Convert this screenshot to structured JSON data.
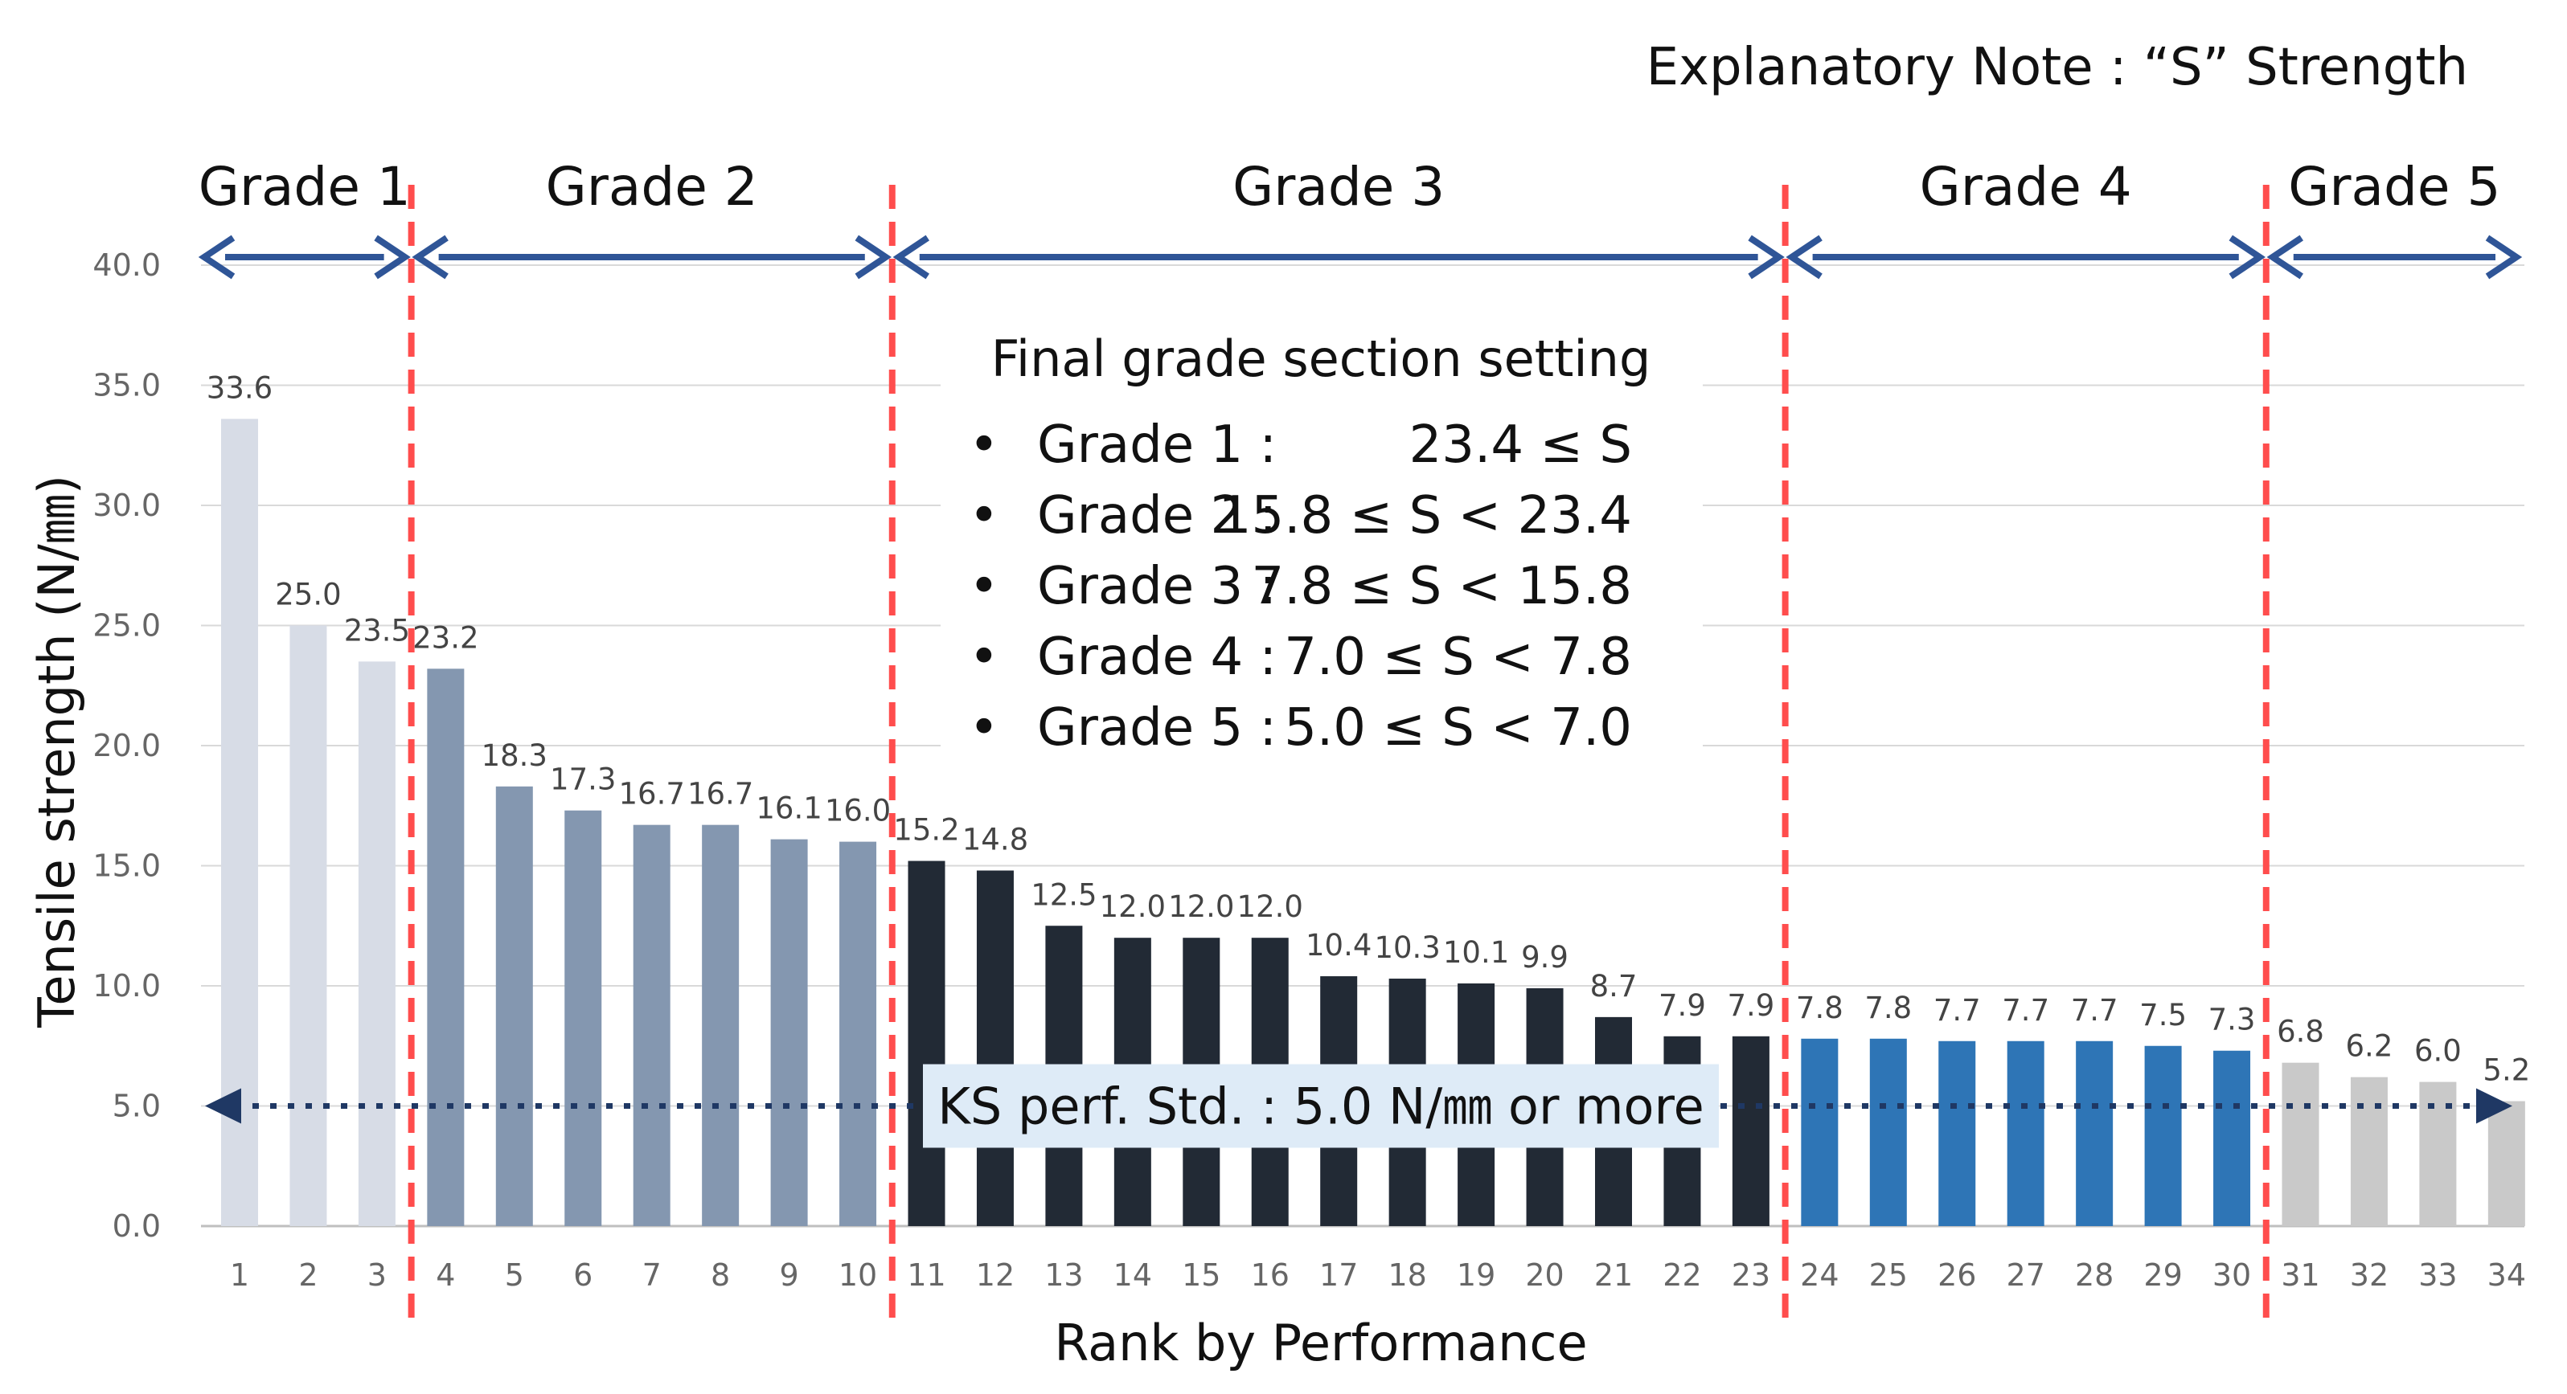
{
  "chart_data": {
    "type": "bar",
    "note": "Explanatory Note : “S” Strength",
    "xlabel": "Rank by Performance",
    "ylabel": "Tensile strength (N/㎜)",
    "ylim": [
      0,
      40
    ],
    "yticks": [
      "0.0",
      "5.0",
      "10.0",
      "15.0",
      "20.0",
      "25.0",
      "30.0",
      "35.0",
      "40.0"
    ],
    "categories": [
      "1",
      "2",
      "3",
      "4",
      "5",
      "6",
      "7",
      "8",
      "9",
      "10",
      "11",
      "12",
      "13",
      "14",
      "15",
      "16",
      "17",
      "18",
      "19",
      "20",
      "21",
      "22",
      "23",
      "24",
      "25",
      "26",
      "27",
      "28",
      "29",
      "30",
      "31",
      "32",
      "33",
      "34"
    ],
    "values": [
      33.6,
      25.0,
      23.5,
      23.2,
      18.3,
      17.3,
      16.7,
      16.7,
      16.1,
      16.0,
      15.2,
      14.8,
      12.5,
      12.0,
      12.0,
      12.0,
      10.4,
      10.3,
      10.1,
      9.9,
      8.7,
      7.9,
      7.9,
      7.8,
      7.8,
      7.7,
      7.7,
      7.7,
      7.5,
      7.3,
      6.8,
      6.2,
      6.0,
      5.2
    ],
    "value_labels": [
      "33.6",
      "25.0",
      "23.5",
      "23.2",
      "18.3",
      "17.3",
      "16.7",
      "16.7",
      "16.1",
      "16.0",
      "15.2",
      "14.8",
      "12.5",
      "12.0",
      "12.0",
      "12.0",
      "10.4",
      "10.3",
      "10.1",
      "9.9",
      "8.7",
      "7.9",
      "7.9",
      "7.8",
      "7.8",
      "7.7",
      "7.7",
      "7.7",
      "7.5",
      "7.3",
      "6.8",
      "6.2",
      "6.0",
      "5.2"
    ],
    "grades": [
      {
        "label": "Grade 1",
        "first_rank": 1,
        "last_rank": 3,
        "color": "#d7dce6"
      },
      {
        "label": "Grade 2",
        "first_rank": 4,
        "last_rank": 10,
        "color": "#8497b0"
      },
      {
        "label": "Grade 3",
        "first_rank": 11,
        "last_rank": 23,
        "color": "#222a35"
      },
      {
        "label": "Grade 4",
        "first_rank": 24,
        "last_rank": 30,
        "color": "#2e75b6"
      },
      {
        "label": "Grade 5",
        "first_rank": 31,
        "last_rank": 34,
        "color": "#c9c9c9"
      }
    ],
    "grade_box": {
      "title": "Final grade section setting",
      "bullet": "•",
      "rows": [
        {
          "grade": "Grade 1 :",
          "range": "23.4 ≤ S"
        },
        {
          "grade": "Grade 2 :",
          "range": "15.8 ≤ S < 23.4"
        },
        {
          "grade": "Grade 3 :",
          "range": "7.8 ≤ S < 15.8"
        },
        {
          "grade": "Grade 4 :",
          "range": "7.0 ≤ S <   7.8"
        },
        {
          "grade": "Grade 5 :",
          "range": "5.0 ≤ S <   7.0"
        }
      ]
    },
    "ks_standard": {
      "value": 5.0,
      "label": "KS perf. Std. : 5.0 N/㎜ or more"
    },
    "colors": {
      "arrow": "#2f5597",
      "divider": "#ff4d4d",
      "grid": "#d9d9d9",
      "ks_line": "#1f3864",
      "ks_box": "#deebf7"
    }
  }
}
